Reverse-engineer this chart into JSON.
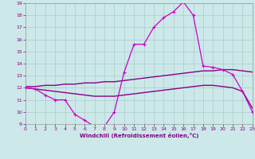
{
  "xlabel": "Windchill (Refroidissement éolien,°C)",
  "xlim": [
    0,
    23
  ],
  "ylim": [
    9,
    19
  ],
  "xticks": [
    0,
    1,
    2,
    3,
    4,
    5,
    6,
    7,
    8,
    9,
    10,
    11,
    12,
    13,
    14,
    15,
    16,
    17,
    18,
    19,
    20,
    21,
    22,
    23
  ],
  "yticks": [
    9,
    10,
    11,
    12,
    13,
    14,
    15,
    16,
    17,
    18,
    19
  ],
  "background_color": "#cce8e8",
  "grid_color": "#aacccc",
  "line_color_main": "#cc00cc",
  "line_color_trend": "#880088",
  "line1_x": [
    0,
    1,
    2,
    3,
    4,
    5,
    6,
    7,
    8,
    9,
    10,
    11,
    12,
    13,
    14,
    15,
    16,
    17,
    18,
    19,
    20,
    21,
    22,
    23
  ],
  "line1_y": [
    12.0,
    11.9,
    11.4,
    11.0,
    11.0,
    9.8,
    9.3,
    8.8,
    8.8,
    10.0,
    13.3,
    15.6,
    15.6,
    17.0,
    17.8,
    18.3,
    19.1,
    18.0,
    13.8,
    13.7,
    13.5,
    13.1,
    11.7,
    10.0
  ],
  "line2_x": [
    0,
    1,
    2,
    3,
    4,
    5,
    6,
    7,
    8,
    9,
    10,
    11,
    12,
    13,
    14,
    15,
    16,
    17,
    18,
    19,
    20,
    21,
    22,
    23
  ],
  "line2_y": [
    12.1,
    12.1,
    12.2,
    12.2,
    12.3,
    12.3,
    12.4,
    12.4,
    12.5,
    12.5,
    12.6,
    12.7,
    12.8,
    12.9,
    13.0,
    13.1,
    13.2,
    13.3,
    13.4,
    13.4,
    13.5,
    13.5,
    13.4,
    13.3
  ],
  "line3_x": [
    0,
    1,
    2,
    3,
    4,
    5,
    6,
    7,
    8,
    9,
    10,
    11,
    12,
    13,
    14,
    15,
    16,
    17,
    18,
    19,
    20,
    21,
    22,
    23
  ],
  "line3_y": [
    12.0,
    11.9,
    11.8,
    11.7,
    11.6,
    11.5,
    11.4,
    11.3,
    11.3,
    11.3,
    11.4,
    11.5,
    11.6,
    11.7,
    11.8,
    11.9,
    12.0,
    12.1,
    12.2,
    12.2,
    12.1,
    12.0,
    11.7,
    10.3
  ]
}
